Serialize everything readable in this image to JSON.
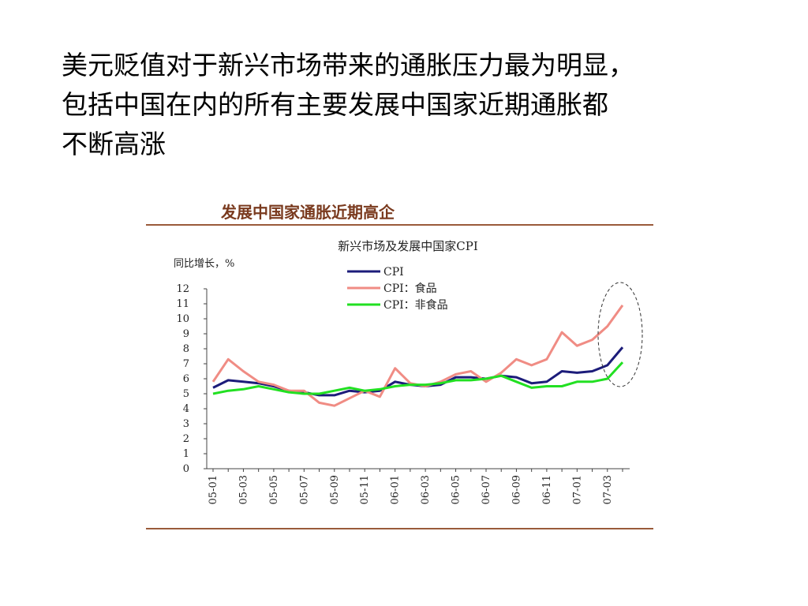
{
  "headline": {
    "line1": "美元贬值对于新兴市场带来的通胀压力最为明显，",
    "line2": "包括中国在内的所有主要发展中国家近期通胀都",
    "line3": "不断高涨"
  },
  "panel_title": "发展中国家通胀近期高企",
  "colors": {
    "rule": "#9a5a3a",
    "panel_title": "#7a3a1e",
    "cpi": "#1c1c7a",
    "cpi_food": "#f08c84",
    "cpi_nonfood": "#22e022"
  },
  "chart_data": {
    "type": "line",
    "title": "新兴市场及发展中国家CPI",
    "ylabel": "同比增长，%",
    "xlabel": "",
    "ylim": [
      0,
      12
    ],
    "yticks": [
      0,
      1,
      2,
      3,
      4,
      5,
      6,
      7,
      8,
      9,
      10,
      11,
      12
    ],
    "x": [
      "05-01",
      "05-02",
      "05-03",
      "05-04",
      "05-05",
      "05-06",
      "05-07",
      "05-08",
      "05-09",
      "05-10",
      "05-11",
      "05-12",
      "06-01",
      "06-02",
      "06-03",
      "06-04",
      "06-05",
      "06-06",
      "06-07",
      "06-08",
      "06-09",
      "06-10",
      "06-11",
      "06-12",
      "07-01",
      "07-02",
      "07-03",
      "07-04"
    ],
    "xtick_labels": [
      "05-01",
      "05-03",
      "05-05",
      "05-07",
      "05-09",
      "05-11",
      "06-01",
      "06-03",
      "06-05",
      "06-07",
      "06-09",
      "06-11",
      "07-01",
      "07-03"
    ],
    "legend_position": "top-center",
    "annotation": "dashed ellipse around latest values",
    "series": [
      {
        "name": "CPI",
        "color": "#1c1c7a",
        "values": [
          5.4,
          5.9,
          5.8,
          5.7,
          5.5,
          5.2,
          5.1,
          4.9,
          4.9,
          5.2,
          5.1,
          5.2,
          5.8,
          5.6,
          5.5,
          5.6,
          6.1,
          6.1,
          6.0,
          6.2,
          6.1,
          5.7,
          5.8,
          6.5,
          6.4,
          6.5,
          6.9,
          8.1
        ]
      },
      {
        "name": "CPI：食品",
        "color": "#f08c84",
        "values": [
          5.8,
          7.3,
          6.5,
          5.8,
          5.6,
          5.2,
          5.2,
          4.4,
          4.2,
          4.7,
          5.2,
          4.8,
          6.7,
          5.7,
          5.5,
          5.8,
          6.3,
          6.5,
          5.8,
          6.4,
          7.3,
          6.9,
          7.3,
          9.1,
          8.2,
          8.6,
          9.5,
          10.9
        ]
      },
      {
        "name": "CPI：非食品",
        "color": "#22e022",
        "values": [
          5.0,
          5.2,
          5.3,
          5.5,
          5.3,
          5.1,
          5.0,
          5.0,
          5.2,
          5.4,
          5.2,
          5.3,
          5.5,
          5.6,
          5.6,
          5.7,
          5.9,
          5.9,
          6.0,
          6.2,
          5.8,
          5.4,
          5.5,
          5.5,
          5.8,
          5.8,
          6.0,
          7.1
        ]
      }
    ]
  }
}
